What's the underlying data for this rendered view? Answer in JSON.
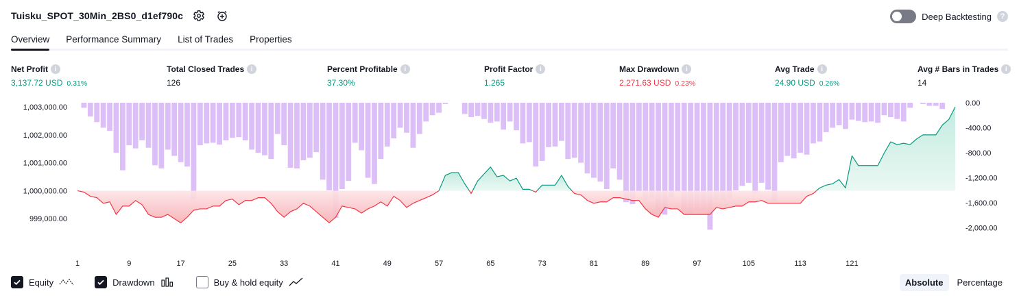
{
  "strategy": {
    "title": "Tuisku_SPOT_30Min_2BS0_d1ef790c"
  },
  "deep_backtesting": {
    "label": "Deep Backtesting",
    "enabled": false
  },
  "tabs": [
    {
      "label": "Overview",
      "active": true
    },
    {
      "label": "Performance Summary",
      "active": false
    },
    {
      "label": "List of Trades",
      "active": false
    },
    {
      "label": "Properties",
      "active": false
    }
  ],
  "metrics": [
    {
      "label": "Net Profit",
      "value": "3,137.72 USD",
      "pct": "0.31%",
      "tone": "pos"
    },
    {
      "label": "Total Closed Trades",
      "value": "126",
      "pct": "",
      "tone": "neu"
    },
    {
      "label": "Percent Profitable",
      "value": "37.30%",
      "pct": "",
      "tone": "pos"
    },
    {
      "label": "Profit Factor",
      "value": "1.265",
      "pct": "",
      "tone": "pos"
    },
    {
      "label": "Max Drawdown",
      "value": "2,271.63 USD",
      "pct": "0.23%",
      "tone": "neg"
    },
    {
      "label": "Avg Trade",
      "value": "24.90 USD",
      "pct": "0.26%",
      "tone": "pos"
    },
    {
      "label": "Avg # Bars in Trades",
      "value": "14",
      "pct": "",
      "tone": "neu"
    }
  ],
  "legend": {
    "equity": {
      "label": "Equity",
      "checked": true
    },
    "drawdown": {
      "label": "Drawdown",
      "checked": true
    },
    "buy_hold": {
      "label": "Buy & hold equity",
      "checked": false
    }
  },
  "modes": [
    {
      "label": "Absolute",
      "active": true
    },
    {
      "label": "Percentage",
      "active": false
    }
  ],
  "colors": {
    "positive": "#089981",
    "negative": "#f23645",
    "drawdown_bar": "#d9b8f7",
    "equity_up_fill": "#d4f2ea",
    "equity_down_fill": "#f9c5c9"
  },
  "chart_data": {
    "type": "area",
    "baseline": 1000000,
    "x_ticks": [
      "1",
      "9",
      "17",
      "25",
      "33",
      "41",
      "49",
      "57",
      "65",
      "73",
      "81",
      "89",
      "97",
      "105",
      "113",
      "121"
    ],
    "equity_axis": {
      "ticks": [
        "999,000.00",
        "1,000,000.00",
        "1,001,000.00",
        "1,002,000.00",
        "1,003,000.00"
      ],
      "values": [
        999000,
        1000000,
        1001000,
        1002000,
        1003000
      ],
      "ylim": [
        998000,
        1003150
      ]
    },
    "drawdown_axis": {
      "ticks": [
        "0.00",
        "-400.00",
        "-800.00",
        "-1,200.00",
        "-1,600.00",
        "-2,000.00"
      ],
      "values": [
        0,
        -400,
        -800,
        -1200,
        -1600,
        -2000
      ],
      "ylim": [
        -2300,
        0
      ]
    },
    "series": [
      {
        "name": "Equity",
        "values": [
          1000000,
          999950,
          999800,
          999750,
          999550,
          999600,
          999150,
          999450,
          999450,
          999650,
          999500,
          999150,
          999050,
          999050,
          999150,
          999000,
          998850,
          999050,
          999300,
          999350,
          999350,
          999450,
          999450,
          999650,
          999700,
          999500,
          999650,
          999650,
          999750,
          999750,
          999550,
          999250,
          999050,
          999250,
          999350,
          999550,
          999450,
          999250,
          999050,
          998850,
          999050,
          999450,
          999400,
          999350,
          999200,
          999350,
          999450,
          999600,
          999450,
          999800,
          999650,
          999400,
          999550,
          999650,
          999750,
          999850,
          1000000,
          1000550,
          1000650,
          1000650,
          1000250,
          999900,
          1000350,
          1000600,
          1000850,
          1000500,
          1000550,
          1000350,
          1000450,
          1000050,
          1000050,
          999950,
          1000200,
          1000200,
          1000200,
          1000550,
          1000150,
          999900,
          999850,
          999650,
          999550,
          999600,
          999600,
          999750,
          999750,
          999700,
          999650,
          999650,
          999350,
          999150,
          999050,
          999400,
          999350,
          999350,
          999150,
          999150,
          999150,
          999150,
          999150,
          999400,
          999350,
          999400,
          999450,
          999450,
          999600,
          999600,
          999650,
          999550,
          999550,
          999550,
          999550,
          999550,
          999550,
          999800,
          999900,
          1000100,
          1000200,
          1000250,
          1000400,
          1000100,
          1001250,
          1000900,
          1000900,
          1000900,
          1000900,
          1001350,
          1001750,
          1001650,
          1001700,
          1001650,
          1001850,
          1002000,
          1002000,
          1002000,
          1002350,
          1002550,
          1003000
        ]
      },
      {
        "name": "Drawdown",
        "values": [
          0,
          -80,
          -220,
          -310,
          -400,
          -450,
          -800,
          -1080,
          -680,
          -730,
          -600,
          -720,
          -1000,
          -1050,
          -750,
          -850,
          -950,
          -1020,
          -1540,
          -680,
          -650,
          -640,
          -670,
          -600,
          -560,
          -550,
          -600,
          -750,
          -800,
          -840,
          -900,
          -500,
          -680,
          -1040,
          -1050,
          -920,
          -880,
          -790,
          -1230,
          -1400,
          -1840,
          -1380,
          -1250,
          -640,
          -760,
          -1200,
          -1300,
          -900,
          -700,
          -570,
          -400,
          -480,
          -720,
          -500,
          -300,
          -200,
          -160,
          -20,
          0,
          0,
          -180,
          -230,
          -210,
          -260,
          -320,
          -300,
          -430,
          -300,
          -440,
          -650,
          -630,
          -1020,
          -930,
          -710,
          -700,
          -610,
          -900,
          -880,
          -960,
          -1130,
          -1200,
          -1260,
          -1380,
          -1050,
          -1230,
          -1590,
          -1620,
          -1410,
          -1550,
          -1530,
          -1740,
          -1790,
          -1520,
          -1420,
          -1730,
          -1760,
          -1730,
          -1720,
          -2030,
          -1550,
          -1560,
          -1530,
          -1400,
          -1330,
          -1280,
          -1450,
          -1280,
          -1390,
          -1580,
          -950,
          -850,
          -890,
          -800,
          -830,
          -650,
          -620,
          -470,
          -400,
          -360,
          -420,
          -270,
          -290,
          -310,
          -300,
          -320,
          -200,
          -230,
          -260,
          -300,
          -80,
          0,
          -20,
          -50,
          -50,
          -100
        ]
      }
    ]
  }
}
